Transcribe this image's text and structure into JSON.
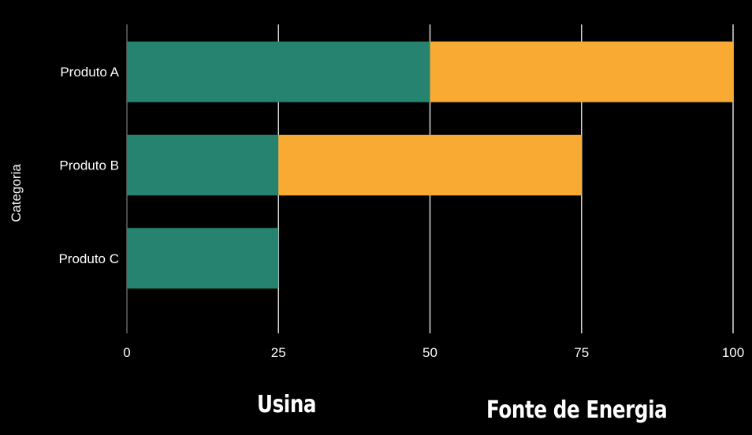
{
  "chart_data": {
    "type": "bar",
    "orientation": "horizontal",
    "stacked": true,
    "categories": [
      "Produto A",
      "Produto B",
      "Produto C"
    ],
    "series": [
      {
        "name": "Usina",
        "values": [
          50,
          25,
          25
        ],
        "color": "#25836f"
      },
      {
        "name": "Fonte de Energia",
        "values": [
          50,
          50,
          0
        ],
        "color": "#f9aa33"
      }
    ],
    "title": "",
    "xlabel": "",
    "ylabel": "Categoria",
    "xlim": [
      0,
      100
    ],
    "xticks": [
      "0",
      "25",
      "50",
      "75",
      "100"
    ],
    "grid": "vertical",
    "legend_position": "bottom"
  },
  "colors": {
    "background": "#000000",
    "text": "#ffffff",
    "gridline": "#d9d9d9",
    "axis_line": "#666666"
  }
}
